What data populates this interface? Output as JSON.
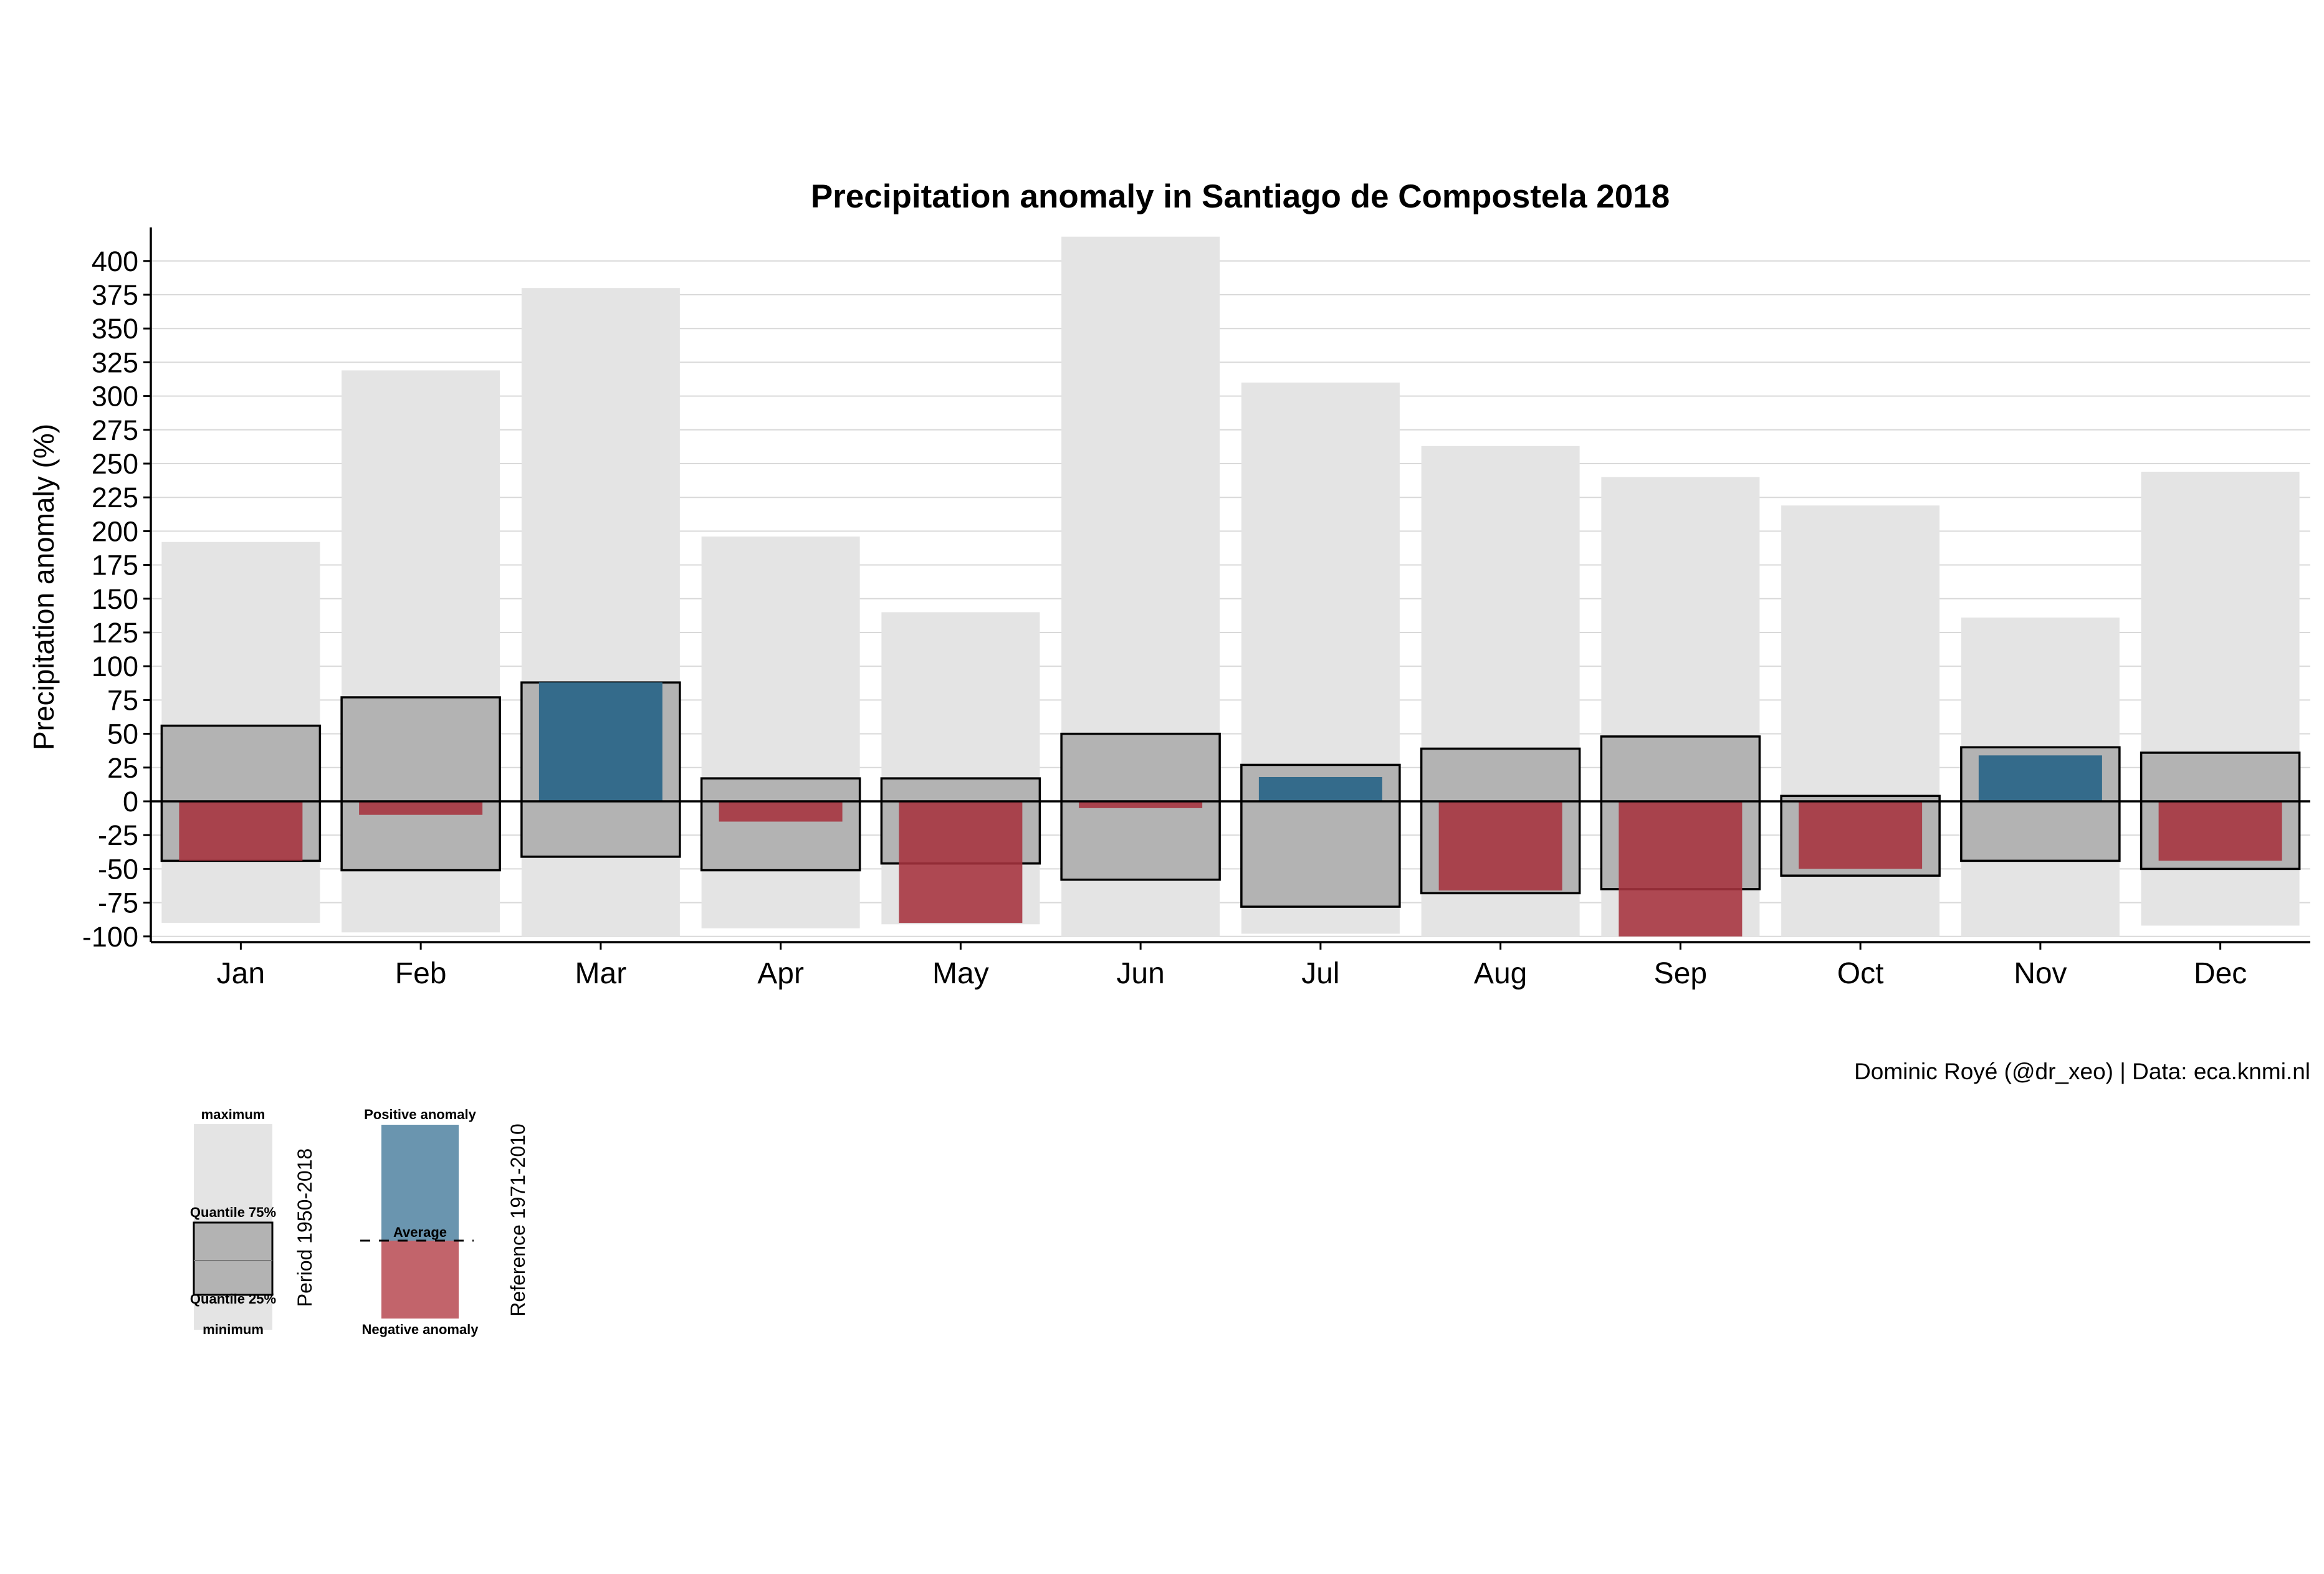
{
  "chart_data": {
    "type": "bar",
    "title": "Precipitation anomaly in Santiago de Compostela 2018",
    "ylabel": "Precipitation anomaly (%)",
    "xlabel": "",
    "caption": "Dominic Royé (@dr_xeo) | Data: eca.knmi.nl",
    "ylim": [
      -105,
      420
    ],
    "yticks": [
      -100,
      -75,
      -50,
      -25,
      0,
      25,
      50,
      75,
      100,
      125,
      150,
      175,
      200,
      225,
      250,
      275,
      300,
      325,
      350,
      375,
      400
    ],
    "grid": true,
    "categories": [
      "Jan",
      "Feb",
      "Mar",
      "Apr",
      "May",
      "Jun",
      "Jul",
      "Aug",
      "Sep",
      "Oct",
      "Nov",
      "Dec"
    ],
    "series": [
      {
        "name": "maximum",
        "values": [
          192,
          319,
          380,
          196,
          140,
          418,
          310,
          263,
          240,
          219,
          136,
          244
        ]
      },
      {
        "name": "minimum",
        "values": [
          -90,
          -97,
          -100,
          -94,
          -91,
          -100,
          -98,
          -100,
          -100,
          -100,
          -100,
          -92
        ]
      },
      {
        "name": "Quantile 75%",
        "values": [
          56,
          77,
          88,
          17,
          17,
          50,
          27,
          39,
          48,
          4,
          40,
          36
        ]
      },
      {
        "name": "Quantile 25%",
        "values": [
          -44,
          -51,
          -41,
          -51,
          -46,
          -58,
          -78,
          -68,
          -65,
          -55,
          -44,
          -50
        ]
      },
      {
        "name": "anomaly",
        "values": [
          -44,
          -10,
          88,
          -15,
          -90,
          -5,
          18,
          -66,
          -100,
          -50,
          34,
          -44
        ]
      }
    ],
    "colors": {
      "range": "#e4e4e4",
      "quantile": "#b3b3b3",
      "positive": "#346b8b",
      "negative": "#a6323e",
      "grid": "#d9d9d9"
    },
    "legend": {
      "placement": "bottom-left",
      "period": {
        "maximum": "maximum",
        "q75": "Quantile 75%",
        "q25": "Quantile 25%",
        "minimum": "minimum",
        "side_label": "Period 1950-2018"
      },
      "reference": {
        "positive": "Positive anomaly",
        "average": "Average",
        "negative": "Negative anomaly",
        "side_label": "Reference 1971-2010",
        "positive_color": "#6a95af",
        "negative_color": "#c2646b"
      }
    }
  }
}
